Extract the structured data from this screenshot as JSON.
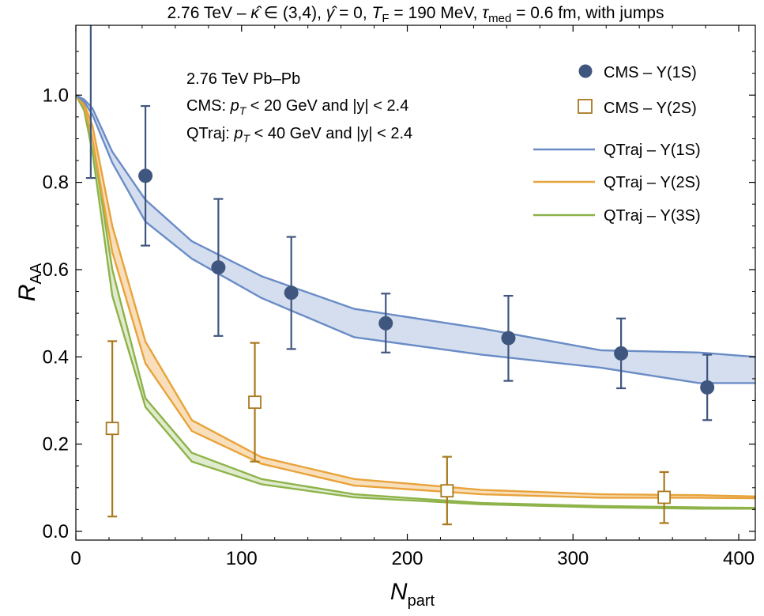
{
  "chart_data": {
    "type": "line",
    "title": "2.76 TeV – κ̂ ∈ (3,4), γ̂ = 0, T_F = 190 MeV, τ_med = 0.6 fm, with jumps",
    "title_parts": {
      "p1": "2.76 TeV – ",
      "kappa": "κ̂",
      "p2": " ∈ (3,4), ",
      "gamma": "γ̂",
      "p3": " = 0, ",
      "tf_symbol": "T",
      "tf_sub": "F",
      "p4": " = 190 MeV, ",
      "tau": "τ",
      "tau_sub": "med",
      "p5": " = 0.6 fm, with jumps"
    },
    "xlabel": {
      "main": "N",
      "sub": "part"
    },
    "ylabel": {
      "main": "R",
      "sub": "AA"
    },
    "xlim": [
      0,
      410
    ],
    "ylim": [
      -0.02,
      1.16
    ],
    "xticks": [
      0,
      100,
      200,
      300,
      400
    ],
    "yticks": [
      0.0,
      0.2,
      0.4,
      0.6,
      0.8,
      1.0
    ],
    "ytick_labels": [
      "0.0",
      "0.2",
      "0.4",
      "0.6",
      "0.8",
      "1.0"
    ],
    "grid": false,
    "annotations": [
      "2.76 TeV Pb–Pb",
      "CMS: p_T < 20 GeV and |y| < 2.4",
      "QTraj: p_T < 40 GeV and |y| < 2.4"
    ],
    "annotation_parts": {
      "line1": "2.76 TeV Pb–Pb",
      "cms_prefix": "CMS: ",
      "cms_suffix": " < 20 GeV and |y| < 2.4",
      "qtraj_prefix": "QTraj: ",
      "qtraj_suffix": " < 40 GeV and |y| < 2.4",
      "pt_symbol": "p",
      "pt_sub": "T"
    },
    "legend_position": "top-right",
    "legend": [
      "CMS – Υ(1S)",
      "CMS – Υ(2S)",
      "QTraj – Υ(1S)",
      "QTraj – Υ(2S)",
      "QTraj – Υ(3S)"
    ],
    "colors": {
      "cms1s": "#3f567f",
      "cms2s": "#a8791e",
      "band1s_line": "#6a8cc6",
      "band1s_fill": "#c7d3e8",
      "band2s_line": "#e8a33a",
      "band2s_fill": "#f5d3a4",
      "band3s_line": "#8db34a",
      "band3s_fill": "#d6e4bd"
    },
    "bands": [
      {
        "name": "QTraj – Υ(1S)",
        "x": [
          0,
          5,
          10,
          22,
          42,
          70,
          112,
          168,
          245,
          317,
          376,
          410
        ],
        "upper": [
          1.0,
          0.99,
          0.97,
          0.87,
          0.76,
          0.665,
          0.585,
          0.51,
          0.465,
          0.415,
          0.41,
          0.4
        ],
        "lower": [
          1.0,
          0.985,
          0.955,
          0.845,
          0.71,
          0.625,
          0.535,
          0.445,
          0.405,
          0.375,
          0.34,
          0.34
        ]
      },
      {
        "name": "QTraj – Υ(2S)",
        "x": [
          0,
          5,
          10,
          22,
          42,
          70,
          112,
          168,
          245,
          317,
          376,
          410
        ],
        "upper": [
          1.0,
          0.98,
          0.93,
          0.7,
          0.435,
          0.255,
          0.17,
          0.12,
          0.095,
          0.085,
          0.083,
          0.08
        ],
        "lower": [
          1.0,
          0.975,
          0.9,
          0.64,
          0.385,
          0.23,
          0.155,
          0.105,
          0.085,
          0.077,
          0.077,
          0.076
        ]
      },
      {
        "name": "QTraj – Υ(3S)",
        "x": [
          0,
          5,
          10,
          22,
          42,
          70,
          112,
          168,
          245,
          317,
          376,
          410
        ],
        "upper": [
          1.0,
          0.97,
          0.9,
          0.6,
          0.305,
          0.18,
          0.12,
          0.085,
          0.065,
          0.058,
          0.055,
          0.054
        ],
        "lower": [
          1.0,
          0.965,
          0.87,
          0.54,
          0.285,
          0.16,
          0.108,
          0.078,
          0.062,
          0.055,
          0.052,
          0.052
        ]
      }
    ],
    "series": [
      {
        "name": "CMS – Υ(1S)",
        "marker": "filled-circle",
        "points": [
          {
            "x": 9,
            "y": 1.18,
            "lo": 0.81,
            "hi": 1.6
          },
          {
            "x": 42,
            "y": 0.815,
            "lo": 0.655,
            "hi": 0.975
          },
          {
            "x": 86,
            "y": 0.605,
            "lo": 0.448,
            "hi": 0.762
          },
          {
            "x": 130,
            "y": 0.547,
            "lo": 0.418,
            "hi": 0.675
          },
          {
            "x": 187,
            "y": 0.477,
            "lo": 0.41,
            "hi": 0.545
          },
          {
            "x": 261,
            "y": 0.443,
            "lo": 0.345,
            "hi": 0.54
          },
          {
            "x": 329,
            "y": 0.408,
            "lo": 0.328,
            "hi": 0.488
          },
          {
            "x": 381,
            "y": 0.33,
            "lo": 0.255,
            "hi": 0.405
          }
        ]
      },
      {
        "name": "CMS – Υ(2S)",
        "marker": "open-square",
        "points": [
          {
            "x": 22,
            "y": 0.236,
            "lo": 0.034,
            "hi": 0.436
          },
          {
            "x": 108,
            "y": 0.296,
            "lo": 0.16,
            "hi": 0.432
          },
          {
            "x": 224,
            "y": 0.093,
            "lo": 0.016,
            "hi": 0.171
          },
          {
            "x": 355,
            "y": 0.078,
            "lo": 0.019,
            "hi": 0.136
          }
        ]
      }
    ]
  }
}
